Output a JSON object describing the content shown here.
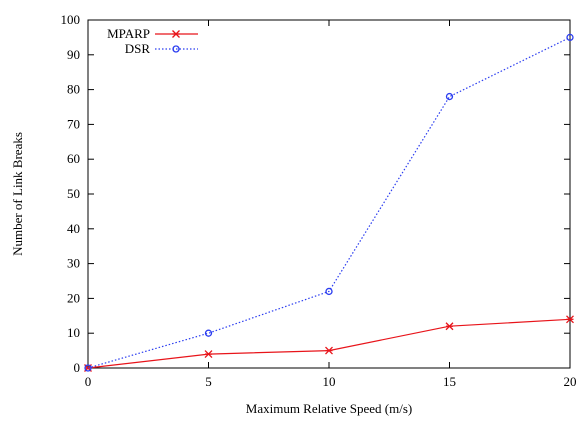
{
  "chart_data": {
    "type": "line",
    "title": "",
    "xlabel": "Maximum Relative Speed (m/s)",
    "ylabel": "Number of Link Breaks",
    "x": [
      0,
      5,
      10,
      15,
      20
    ],
    "xlim": [
      0,
      20
    ],
    "ylim": [
      0,
      100
    ],
    "xticks": [
      "0",
      "5",
      "10",
      "15",
      "20"
    ],
    "yticks": [
      "0",
      "10",
      "20",
      "30",
      "40",
      "50",
      "60",
      "70",
      "80",
      "90",
      "100"
    ],
    "grid": false,
    "legend_position": "top-left",
    "series": [
      {
        "name": "MPARP",
        "values": [
          0,
          4,
          5,
          12,
          14
        ],
        "color": "#e8141a",
        "marker": "star",
        "line_style": "solid"
      },
      {
        "name": "DSR",
        "values": [
          0,
          10,
          22,
          78,
          95
        ],
        "color": "#2b3df0",
        "marker": "circle",
        "line_style": "dotted"
      }
    ]
  }
}
